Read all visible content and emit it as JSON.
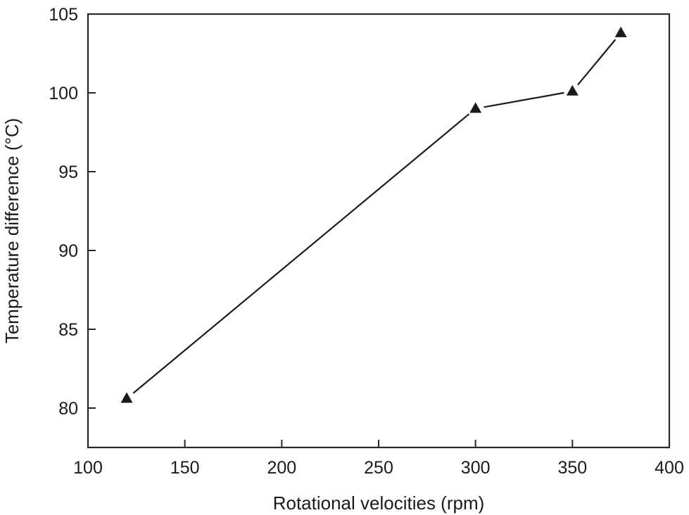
{
  "chart_data": {
    "type": "line",
    "title": "",
    "xlabel": "Rotational velocities (rpm)",
    "ylabel": "Temperature difference (°C)",
    "xlim": [
      100,
      400
    ],
    "ylim": [
      77.5,
      105
    ],
    "xticks": [
      100,
      150,
      200,
      250,
      300,
      350,
      400
    ],
    "yticks": [
      80,
      85,
      90,
      95,
      100,
      105
    ],
    "grid": false,
    "legend": null,
    "marker": "filled-triangle",
    "series": [
      {
        "name": "Temperature difference",
        "x": [
          120,
          300,
          350,
          375
        ],
        "y": [
          80.6,
          99.0,
          100.1,
          103.8
        ]
      }
    ]
  },
  "labels": {
    "xlabel": "Rotational velocities (rpm)",
    "ylabel": "Temperature difference (°C)",
    "xticks": [
      "100",
      "150",
      "200",
      "250",
      "300",
      "350",
      "400"
    ],
    "yticks": [
      "80",
      "85",
      "90",
      "95",
      "100",
      "105"
    ]
  },
  "colors": {
    "line": "#1a1a1a",
    "axis": "#2a2a2a",
    "background": "#ffffff"
  }
}
